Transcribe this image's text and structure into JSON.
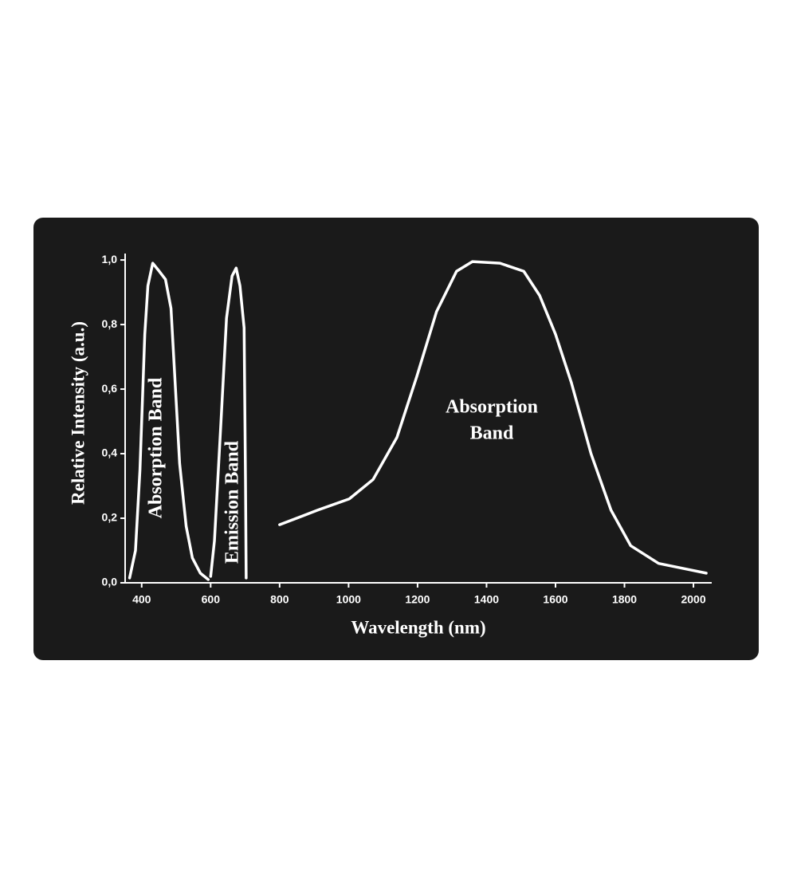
{
  "chart_data": {
    "type": "line",
    "x_label": "Wavelength (nm)",
    "y_label": "Relative Intensity (a.u.)",
    "xlim": [
      352,
      2053
    ],
    "ylim": [
      0,
      1.02
    ],
    "xticks": [
      400,
      600,
      800,
      1000,
      1200,
      1400,
      1600,
      1800,
      2000
    ],
    "yticks": [
      {
        "value": 0,
        "label": "0,0"
      },
      {
        "value": 0.2,
        "label": "0,2"
      },
      {
        "value": 0.4,
        "label": "0,4"
      },
      {
        "value": 0.6,
        "label": "0,6"
      },
      {
        "value": 0.8,
        "label": "0,8"
      },
      {
        "value": 1.0,
        "label": "1,0"
      }
    ],
    "series": [
      {
        "color": "#ffffff",
        "x": [
          365,
          382,
          395,
          409,
          418,
          432,
          451,
          469,
          485,
          497,
          510,
          529,
          547,
          570,
          593
        ],
        "values": [
          0.015,
          0.1,
          0.35,
          0.77,
          0.92,
          0.99,
          0.965,
          0.94,
          0.85,
          0.62,
          0.37,
          0.175,
          0.077,
          0.03,
          0.01
        ]
      },
      {
        "color": "#ffffff",
        "x": [
          600,
          611,
          630,
          646,
          662,
          674,
          685,
          697,
          701,
          703
        ],
        "values": [
          0.02,
          0.13,
          0.5,
          0.82,
          0.95,
          0.975,
          0.92,
          0.79,
          0.32,
          0.015
        ]
      },
      {
        "color": "#ffffff",
        "x": [
          800,
          910,
          1002,
          1071,
          1140,
          1198,
          1255,
          1313,
          1359,
          1439,
          1508,
          1554,
          1600,
          1646,
          1703,
          1761,
          1818,
          1899,
          1991,
          2037
        ],
        "values": [
          0.18,
          0.225,
          0.26,
          0.32,
          0.45,
          0.64,
          0.84,
          0.965,
          0.995,
          0.99,
          0.965,
          0.89,
          0.77,
          0.62,
          0.4,
          0.225,
          0.115,
          0.06,
          0.04,
          0.03
        ]
      }
    ],
    "annotations": [
      {
        "text": "Absorption Band"
      },
      {
        "text": "Emission Band"
      },
      {
        "lines": [
          "Absorption",
          "Band"
        ]
      }
    ]
  }
}
